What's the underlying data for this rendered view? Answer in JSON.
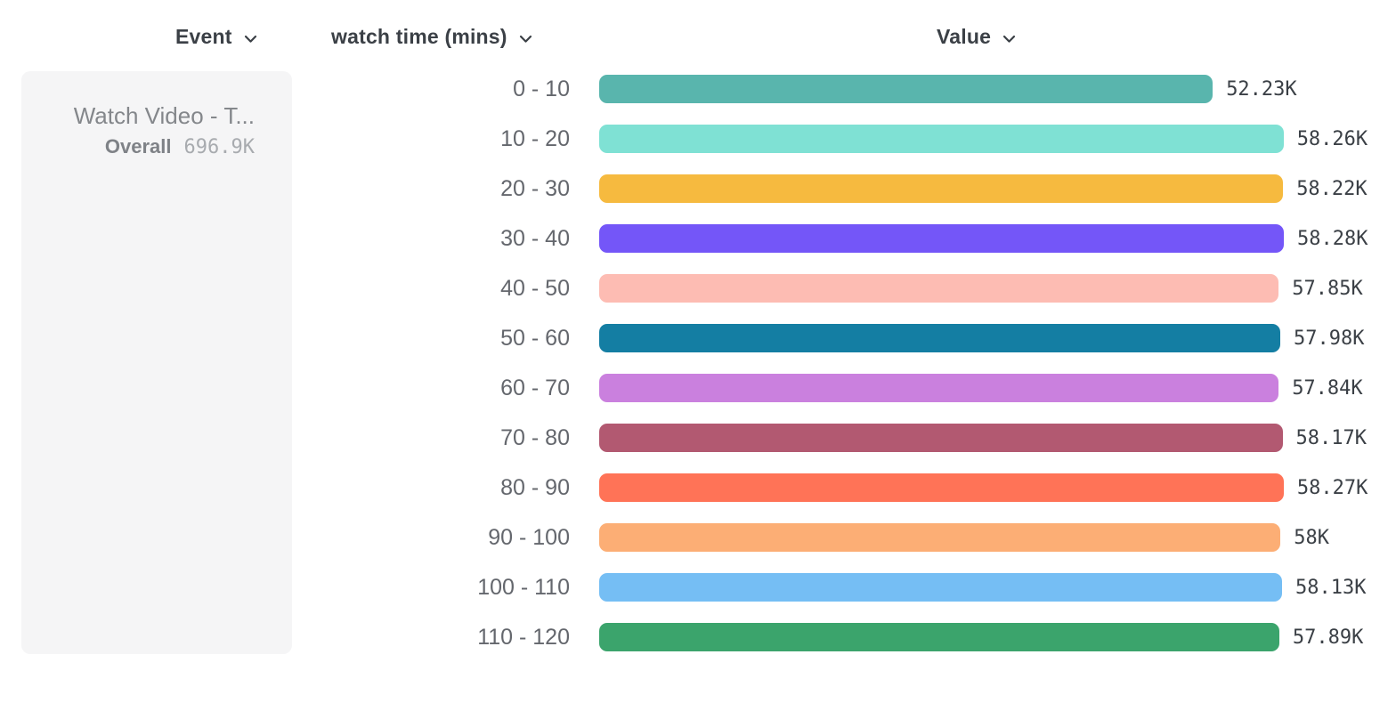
{
  "header": {
    "columns": [
      {
        "label": "Event"
      },
      {
        "label": "watch time (mins)"
      },
      {
        "label": "Value"
      }
    ]
  },
  "event_panel": {
    "title": "Watch Video - T...",
    "overall_label": "Overall",
    "overall_value": "696.9K"
  },
  "colors": {
    "header_text": "#3B4046",
    "bucket_label_text": "#64676D",
    "value_text": "#3B4046",
    "panel_background": "#F5F5F6",
    "panel_title_text": "#84878B",
    "overall_value_text": "#A8ABAF"
  },
  "chart_data": {
    "type": "bar",
    "orientation": "horizontal",
    "title": "",
    "xlabel": "Value",
    "ylabel": "watch time (mins)",
    "categories": [
      "0 - 10",
      "10 - 20",
      "20 - 30",
      "30 - 40",
      "40 - 50",
      "50 - 60",
      "60 - 70",
      "70 - 80",
      "80 - 90",
      "90 - 100",
      "100 - 110",
      "110 - 120"
    ],
    "values": [
      52230,
      58260,
      58220,
      58280,
      57850,
      57980,
      57840,
      58170,
      58270,
      58000,
      58130,
      57890
    ],
    "value_labels": [
      "52.23K",
      "58.26K",
      "58.22K",
      "58.28K",
      "57.85K",
      "57.98K",
      "57.84K",
      "58.17K",
      "58.27K",
      "58K",
      "58.13K",
      "57.89K"
    ],
    "colors": [
      "#59B5AD",
      "#7FE1D4",
      "#F6BA3F",
      "#7456F8",
      "#FDBCB3",
      "#147EA3",
      "#CA80DE",
      "#B25971",
      "#FF7357",
      "#FCAE75",
      "#75BEF4",
      "#3BA46C"
    ],
    "grid": false,
    "legend": false,
    "value_axis_min": 0
  }
}
